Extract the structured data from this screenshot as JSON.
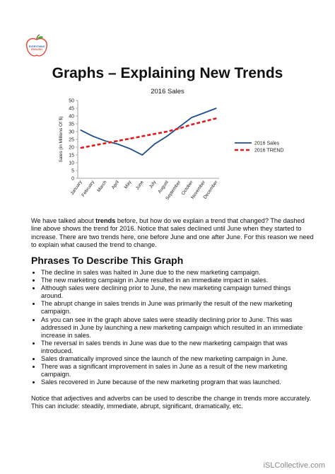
{
  "logo": {
    "line1": "EVERYTHING",
    "line2": "ENGLISH"
  },
  "title": "Graphs – Explaining New Trends",
  "chart_data": {
    "type": "line",
    "title": "2016 Sales",
    "ylabel": "Sales (in Millions Of $)",
    "xlabel": "",
    "ylim": [
      0,
      50
    ],
    "yticks": [
      0,
      5,
      10,
      15,
      20,
      25,
      30,
      35,
      40,
      45,
      50
    ],
    "categories": [
      "January",
      "February",
      "March",
      "April",
      "May",
      "June",
      "July",
      "August",
      "September",
      "October",
      "November",
      "December"
    ],
    "series": [
      {
        "name": "2016 Sales",
        "values": [
          31,
          27,
          24,
          22,
          19,
          15,
          22,
          27,
          33,
          39,
          42,
          45
        ],
        "color": "#1f4e8c",
        "style": "solid"
      },
      {
        "name": "2016 TREND",
        "values": [
          19.5,
          21,
          22.5,
          24,
          25.5,
          27,
          28.5,
          30,
          32,
          34.5,
          36.5,
          38.5
        ],
        "color": "#e01b1b",
        "style": "dashed"
      }
    ],
    "grid": false,
    "legend": "right"
  },
  "intro": {
    "before": "We have talked about ",
    "bold": "trends",
    "after": " before, but how do we explain a trend that changed? The dashed line above shows the trend for 2016. Notice that sales declined until June when they started to increase. There are two trends here, one before June and one after June. For this reason we need to explain what caused the trend to change."
  },
  "phrases_heading": "Phrases To Describe This Graph",
  "phrases": [
    "The decline in sales was halted in June due to the new marketing campaign.",
    "The new marketing campaign in June resulted in an immediate impact in sales.",
    "Although sales were declining prior to June, the new marketing campaign turned things around.",
    "The abrupt change in sales trends in June was primarily the result of the new marketing campaign.",
    "As you can see in the graph above sales were steadily declining prior to June. This was addressed in June by launching a new marketing campaign which resulted in an immediate increase in sales.",
    "The reversal in sales trends in June was due to the new marketing campaign that was introduced.",
    "Sales dramatically improved since the launch of the new marketing campaign in June.",
    "There was a significant improvement in sales in June as a result of the new marketing campaign.",
    "Sales recovered in June because of the new marketing program that was launched."
  ],
  "outro": "Notice that adjectives and adverbs can be used to describe the change in trends more accurately. This can include: steadily, immediate, abrupt, significant, dramatically, etc.",
  "footer": "iSLCollective.com"
}
